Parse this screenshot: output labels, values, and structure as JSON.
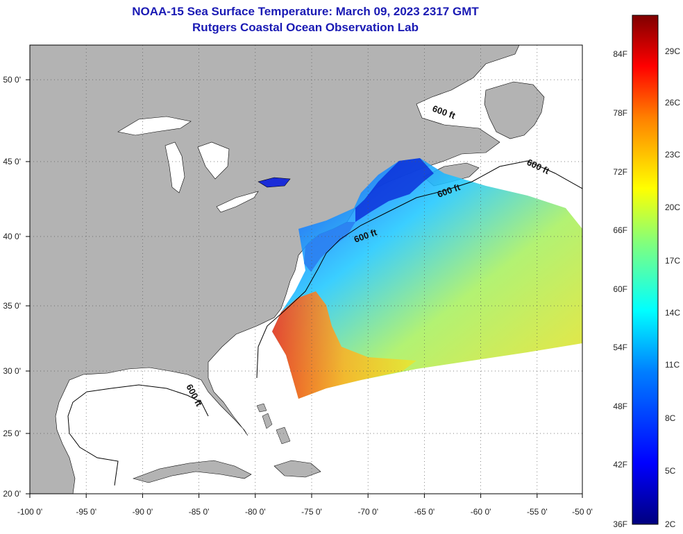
{
  "header": {
    "title": "NOAA-15 Sea Surface Temperature:  March 09, 2023 2317 GMT",
    "subtitle": "Rutgers Coastal Ocean Observation Lab"
  },
  "axes": {
    "latitude_labels": [
      "50 0'",
      "45 0'",
      "40 0'",
      "35 0'",
      "30 0'",
      "25 0'",
      "20 0'"
    ],
    "longitude_labels": [
      "-100 0'",
      "-95 0'",
      "-90 0'",
      "-85 0'",
      "-80 0'",
      "-75 0'",
      "-70 0'",
      "-65 0'",
      "-60 0'",
      "-55 0'",
      "-50 0'"
    ]
  },
  "map": {
    "extent": {
      "lon_min": -100,
      "lon_max": -50,
      "lat_min": 20,
      "lat_max": 52.5
    },
    "land_color": "#b3b3b3",
    "ocean_color": "#ffffff",
    "grid": "dotted",
    "isobath_labels": [
      "600 ft",
      "600 ft",
      "600 ft",
      "600 ft",
      "600 ft"
    ]
  },
  "colorbar": {
    "fahrenheit_labels": [
      "84F",
      "78F",
      "72F",
      "66F",
      "60F",
      "54F",
      "48F",
      "42F",
      "36F"
    ],
    "celsius_labels": [
      "29C",
      "26C",
      "23C",
      "20C",
      "17C",
      "14C",
      "11C",
      "8C",
      "5C",
      "2C"
    ],
    "colors": [
      "#00007f",
      "#0000ff",
      "#007fff",
      "#00ffff",
      "#7fff7f",
      "#ffff00",
      "#ff7f00",
      "#ff0000",
      "#7f0000"
    ]
  }
}
